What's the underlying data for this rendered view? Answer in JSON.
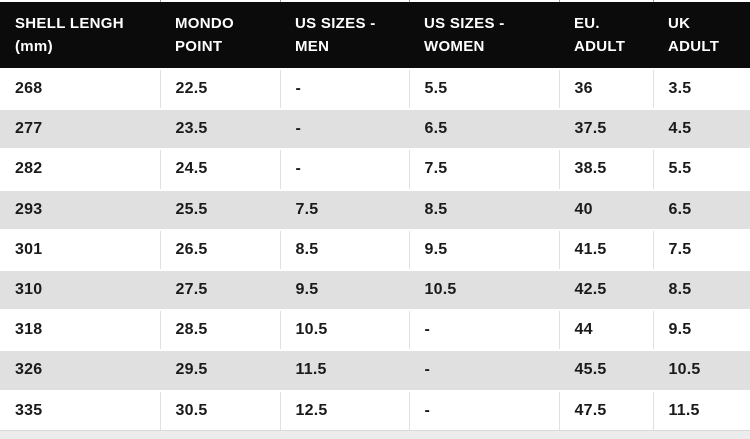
{
  "table": {
    "header_lines": [
      [
        "SHELL LENGH",
        "(mm)"
      ],
      [
        "MONDO",
        "POINT"
      ],
      [
        "US SIZES -",
        "MEN"
      ],
      [
        "US SIZES -",
        "WOMEN"
      ],
      [
        "EU.",
        "ADULT"
      ],
      [
        "UK",
        "ADULT"
      ]
    ],
    "rows": [
      [
        "268",
        "22.5",
        "-",
        "5.5",
        "36",
        "3.5"
      ],
      [
        "277",
        "23.5",
        "-",
        "6.5",
        "37.5",
        "4.5"
      ],
      [
        "282",
        "24.5",
        "-",
        "7.5",
        "38.5",
        "5.5"
      ],
      [
        "293",
        "25.5",
        "7.5",
        "8.5",
        "40",
        "6.5"
      ],
      [
        "301",
        "26.5",
        "8.5",
        "9.5",
        "41.5",
        "7.5"
      ],
      [
        "310",
        "27.5",
        "9.5",
        "10.5",
        "42.5",
        "8.5"
      ],
      [
        "318",
        "28.5",
        "10.5",
        "-",
        "44",
        "9.5"
      ],
      [
        "326",
        "29.5",
        "11.5",
        "-",
        "45.5",
        "10.5"
      ],
      [
        "335",
        "30.5",
        "12.5",
        "-",
        "47.5",
        "11.5"
      ]
    ]
  },
  "chart_data": {
    "type": "table",
    "title": "",
    "columns": [
      "SHELL LENGH (mm)",
      "MONDO POINT",
      "US SIZES - MEN",
      "US SIZES - WOMEN",
      "EU. ADULT",
      "UK ADULT"
    ],
    "rows": [
      [
        "268",
        "22.5",
        "-",
        "5.5",
        "36",
        "3.5"
      ],
      [
        "277",
        "23.5",
        "-",
        "6.5",
        "37.5",
        "4.5"
      ],
      [
        "282",
        "24.5",
        "-",
        "7.5",
        "38.5",
        "5.5"
      ],
      [
        "293",
        "25.5",
        "7.5",
        "8.5",
        "40",
        "6.5"
      ],
      [
        "301",
        "26.5",
        "8.5",
        "9.5",
        "41.5",
        "7.5"
      ],
      [
        "310",
        "27.5",
        "9.5",
        "10.5",
        "42.5",
        "8.5"
      ],
      [
        "318",
        "28.5",
        "10.5",
        "-",
        "44",
        "9.5"
      ],
      [
        "326",
        "29.5",
        "11.5",
        "-",
        "45.5",
        "10.5"
      ],
      [
        "335",
        "30.5",
        "12.5",
        "-",
        "47.5",
        "11.5"
      ]
    ],
    "layout": {
      "header_background": "#0b0b0b",
      "header_text_color": "#ffffff",
      "stripe_color": "#e0e0e0",
      "body_text_color": "#1a1a1a",
      "zebra_striping": "even rows gray, odd rows white"
    }
  }
}
